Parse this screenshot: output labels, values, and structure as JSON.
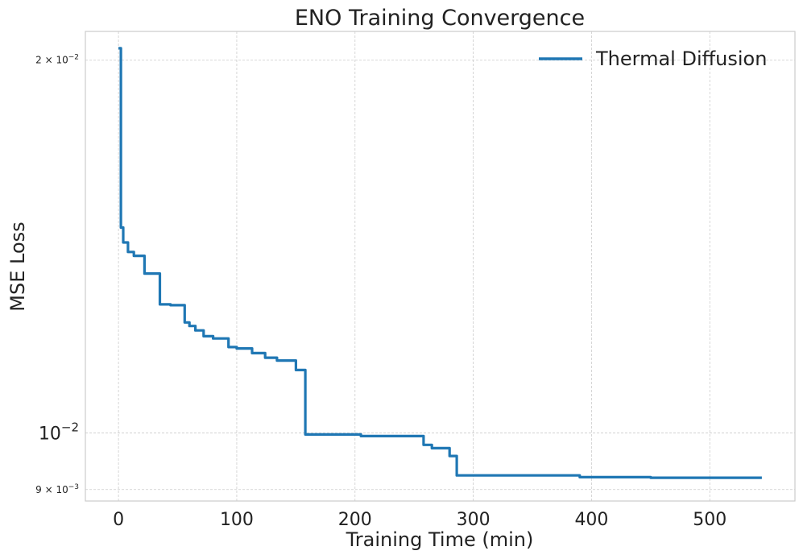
{
  "chart_data": {
    "type": "line",
    "title": "ENO Training Convergence",
    "xlabel": "Training Time (min)",
    "ylabel": "MSE Loss",
    "xlim": [
      -28,
      572
    ],
    "ylim": [
      0.00881,
      0.0211
    ],
    "yscale": "log",
    "grid": true,
    "legend_position": "top-right",
    "x_ticks": [
      {
        "value": 0,
        "label": "0"
      },
      {
        "value": 100,
        "label": "100"
      },
      {
        "value": 200,
        "label": "200"
      },
      {
        "value": 300,
        "label": "300"
      },
      {
        "value": 400,
        "label": "400"
      },
      {
        "value": 500,
        "label": "500"
      }
    ],
    "y_ticks": [
      {
        "value": 0.02,
        "base": "2 × 10",
        "exp": "−2",
        "minor": true
      },
      {
        "value": 0.01,
        "base": "10",
        "exp": "−2",
        "minor": false
      },
      {
        "value": 0.009,
        "base": "9 × 10",
        "exp": "−3",
        "minor": true
      }
    ],
    "series": [
      {
        "name": "Thermal Diffusion",
        "color": "#1f77b4",
        "step": true,
        "points": [
          [
            0,
            0.02045
          ],
          [
            2,
            0.01465
          ],
          [
            4,
            0.01425
          ],
          [
            8,
            0.014
          ],
          [
            13,
            0.0139
          ],
          [
            22,
            0.01345
          ],
          [
            35,
            0.0127
          ],
          [
            44,
            0.01268
          ],
          [
            56,
            0.01228
          ],
          [
            60,
            0.0122
          ],
          [
            65,
            0.0121
          ],
          [
            72,
            0.01197
          ],
          [
            80,
            0.01192
          ],
          [
            93,
            0.01173
          ],
          [
            100,
            0.0117
          ],
          [
            113,
            0.0116
          ],
          [
            124,
            0.0115
          ],
          [
            134,
            0.01144
          ],
          [
            150,
            0.01124
          ],
          [
            158,
            0.00997
          ],
          [
            205,
            0.00994
          ],
          [
            258,
            0.00978
          ],
          [
            265,
            0.00972
          ],
          [
            280,
            0.00958
          ],
          [
            286,
            0.00924
          ],
          [
            390,
            0.00921
          ],
          [
            450,
            0.0092
          ],
          [
            544,
            0.0092
          ]
        ]
      }
    ]
  }
}
